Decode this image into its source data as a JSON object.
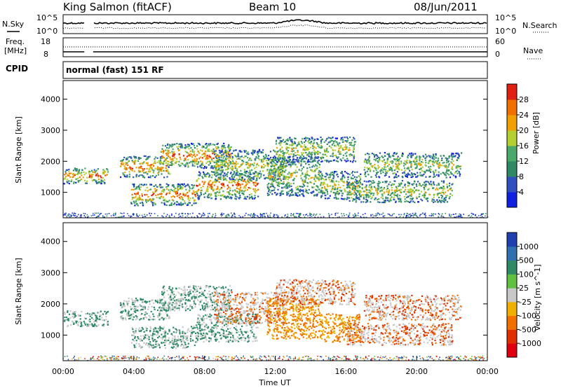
{
  "header": {
    "station": "King Salmon (fitACF)",
    "beam": "Beam 10",
    "date": "08/Jun/2011"
  },
  "noise_panel": {
    "left_label": "N.Sky",
    "right_label": "N.Search",
    "left_ticks": [
      "10^5",
      "10^0"
    ],
    "right_ticks": [
      "10^5",
      "10^0"
    ]
  },
  "freq_panel": {
    "left_label_line1": "Freq.",
    "left_label_line2": "[MHz]",
    "right_label": "Nave",
    "left_ticks": [
      "18",
      "8"
    ],
    "right_ticks": [
      "60",
      "0"
    ]
  },
  "cpid": {
    "label": "CPID",
    "program": "normal (fast) 151 RF"
  },
  "chart_data": [
    {
      "type": "heatmap",
      "name": "power",
      "ylabel": "Slant Range [km]",
      "ylim": [
        180,
        4600
      ],
      "yticks": [
        "1000",
        "2000",
        "3000",
        "4000"
      ],
      "colorbar": {
        "label": "Power [dB]",
        "ticks": [
          "4",
          "8",
          "12",
          "16",
          "20",
          "24",
          "28"
        ],
        "colors": [
          "#1020e0",
          "#3050c0",
          "#2e8a64",
          "#4aa86a",
          "#b4d030",
          "#f0a000",
          "#f07000",
          "#e02010"
        ]
      }
    },
    {
      "type": "heatmap",
      "name": "velocity",
      "ylabel": "Slant Range [km]",
      "xlabel": "Time UT",
      "ylim": [
        180,
        4600
      ],
      "yticks": [
        "1000",
        "2000",
        "3000",
        "4000"
      ],
      "xticks": [
        "00:00",
        "04:00",
        "08:00",
        "12:00",
        "16:00",
        "20:00",
        "00:00"
      ],
      "colorbar": {
        "label": "Velocity [m s^-1]",
        "ticks": [
          "1000",
          "500",
          "100",
          "25",
          "-25",
          "-100",
          "-500",
          "-1000"
        ],
        "colors": [
          "#2040b0",
          "#3070b0",
          "#2e8a64",
          "#60c040",
          "#c8c8c8",
          "#f0b000",
          "#f07000",
          "#e03000",
          "#e00010"
        ]
      }
    }
  ]
}
